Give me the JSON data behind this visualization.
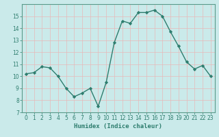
{
  "x": [
    0,
    1,
    2,
    3,
    4,
    5,
    6,
    7,
    8,
    9,
    10,
    11,
    12,
    13,
    14,
    15,
    16,
    17,
    18,
    19,
    20,
    21,
    22,
    23
  ],
  "y": [
    10.2,
    10.3,
    10.8,
    10.7,
    10.0,
    9.0,
    8.3,
    8.6,
    9.0,
    7.5,
    9.5,
    12.8,
    14.6,
    14.4,
    15.3,
    15.3,
    15.5,
    15.0,
    13.7,
    12.5,
    11.2,
    10.6,
    10.9,
    10.0
  ],
  "line_color": "#2e7d6e",
  "marker": "D",
  "marker_size": 2.2,
  "bg_color": "#caeaea",
  "grid_color": "#e8b8b8",
  "xlabel": "Humidex (Indice chaleur)",
  "ylim": [
    7,
    16
  ],
  "xlim": [
    -0.5,
    23.5
  ],
  "yticks": [
    7,
    8,
    9,
    10,
    11,
    12,
    13,
    14,
    15
  ],
  "xticks": [
    0,
    1,
    2,
    3,
    4,
    5,
    6,
    7,
    8,
    9,
    10,
    11,
    12,
    13,
    14,
    15,
    16,
    17,
    18,
    19,
    20,
    21,
    22,
    23
  ],
  "xlabel_fontsize": 6.5,
  "tick_fontsize": 5.5,
  "line_width": 1.0
}
